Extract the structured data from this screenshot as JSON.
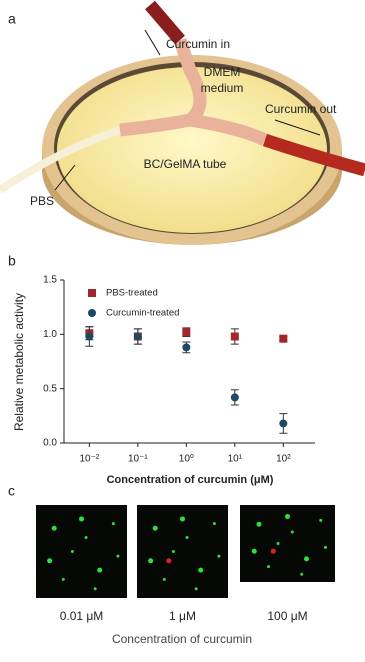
{
  "panel_a": {
    "letter": "a",
    "labels": {
      "curcumin_in": "Curcumin in",
      "dmem_1": "DMEM",
      "dmem_2": "medium",
      "curcumin_out": "Curcumin out",
      "tube": "BC/GelMA tube",
      "pbs": "PBS"
    }
  },
  "chart_data": {
    "type": "scatter",
    "letter": "b",
    "xlabel": "Concentration of curcumin (μM)",
    "ylabel": "Relative metabolic activity",
    "x": [
      0.01,
      0.1,
      1,
      10,
      100
    ],
    "xscale": "log",
    "xlim": [
      0.003,
      450
    ],
    "xticks": [
      {
        "value": 0.01,
        "label": "10⁻²"
      },
      {
        "value": 0.1,
        "label": "10⁻¹"
      },
      {
        "value": 1,
        "label": "10⁰"
      },
      {
        "value": 10,
        "label": "10¹"
      },
      {
        "value": 100,
        "label": "10²"
      }
    ],
    "ylim": [
      0,
      1.5
    ],
    "yticks": [
      {
        "value": 0,
        "label": "0.0"
      },
      {
        "value": 0.5,
        "label": "0.5"
      },
      {
        "value": 1,
        "label": "1.0"
      },
      {
        "value": 1.5,
        "label": "1.5"
      }
    ],
    "legend": "upper left",
    "series": [
      {
        "name": "PBS-treated",
        "color": "#a3272a",
        "marker": "square",
        "values": [
          1.01,
          0.98,
          1.02,
          0.98,
          0.96
        ],
        "errors": [
          0.06,
          0.07,
          0.04,
          0.07,
          0.02
        ]
      },
      {
        "name": "Curcumin-treated",
        "color": "#1d4a63",
        "marker": "circle",
        "values": [
          0.98,
          0.98,
          0.88,
          0.42,
          0.18
        ],
        "errors": [
          0.09,
          0.07,
          0.05,
          0.07,
          0.09
        ]
      }
    ]
  },
  "panel_c": {
    "letter": "c",
    "image_labels": [
      "0.01 μM",
      "1 μM",
      "100 μM"
    ],
    "caption": "Concentration of curcumin"
  }
}
